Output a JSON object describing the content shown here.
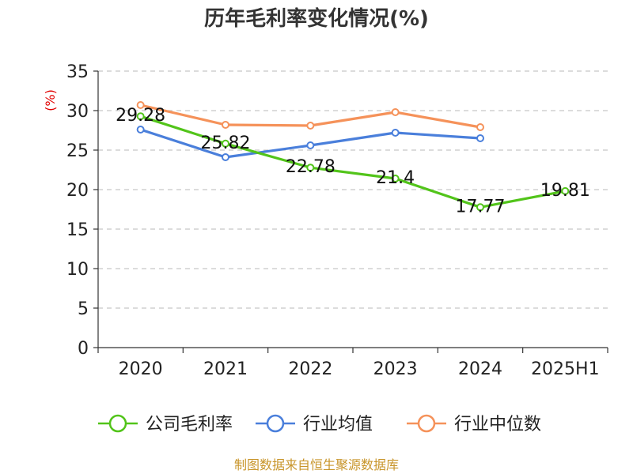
{
  "chart_data": {
    "type": "line",
    "title": "历年毛利率变化情况(%)",
    "ylabel": "(%)",
    "xlabel": "",
    "categories": [
      "2020",
      "2021",
      "2022",
      "2023",
      "2024",
      "2025H1"
    ],
    "ylim": [
      0,
      35
    ],
    "yticks": [
      0,
      5,
      10,
      15,
      20,
      25,
      30,
      35
    ],
    "grid": true,
    "legend_position": "bottom",
    "series": [
      {
        "name": "公司毛利率",
        "color": "#52c41a",
        "values": [
          29.28,
          25.82,
          22.78,
          21.4,
          17.77,
          19.81
        ],
        "labels": [
          "29.28",
          "25.82",
          "22.78",
          "21.4",
          "17.77",
          "19.81"
        ]
      },
      {
        "name": "行业均值",
        "color": "#4a7fdb",
        "values": [
          27.6,
          24.1,
          25.6,
          27.2,
          26.5,
          null
        ]
      },
      {
        "name": "行业中位数",
        "color": "#f5925a",
        "values": [
          30.7,
          28.2,
          28.1,
          29.8,
          27.9,
          null
        ]
      }
    ]
  },
  "source": "制图数据来自恒生聚源数据库"
}
